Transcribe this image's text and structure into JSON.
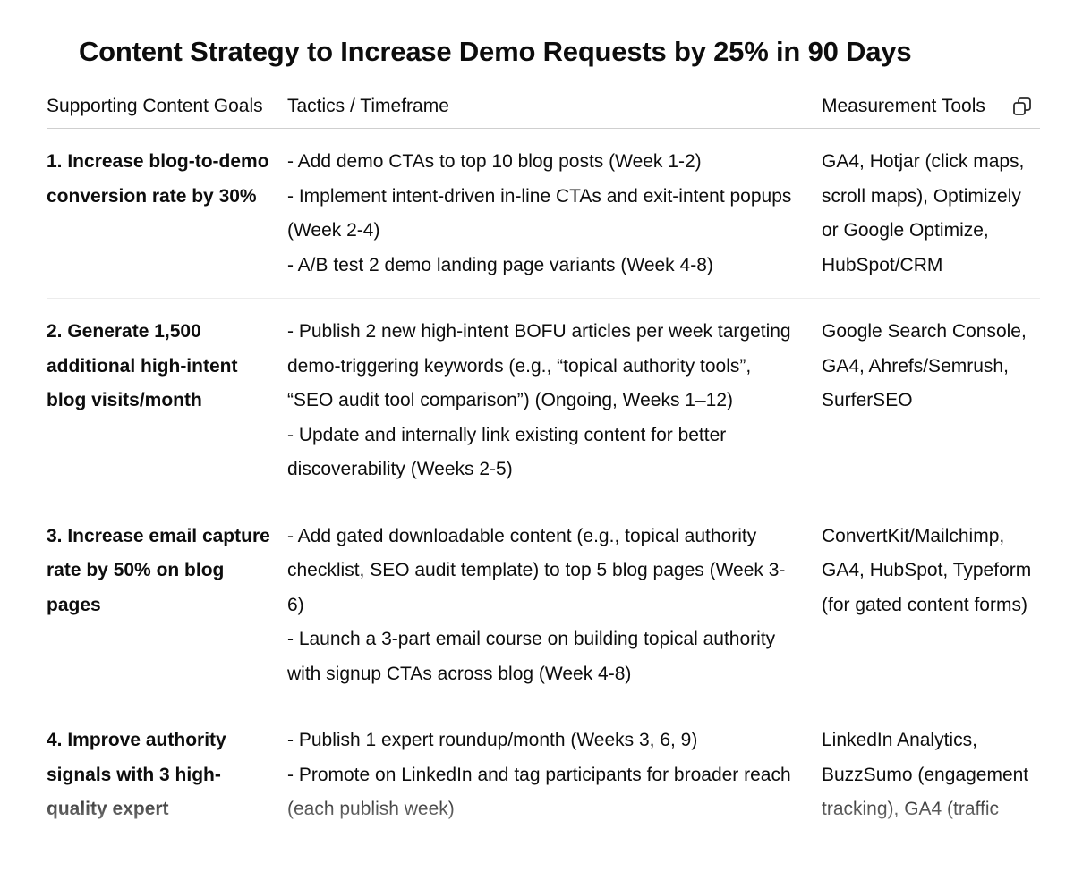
{
  "title": "Content Strategy to Increase Demo Requests by 25% in 90 Days",
  "table": {
    "headers": {
      "goals": "Supporting Content Goals",
      "tactics": "Tactics / Timeframe",
      "tools": "Measurement Tools"
    },
    "copy_icon": "copy-icon",
    "rows": [
      {
        "goal": "1. Increase blog-to-demo conversion rate by 30%",
        "tactics": [
          "- Add demo CTAs to top 10 blog posts (Week 1-2)",
          "- Implement intent-driven in-line CTAs and exit-intent popups (Week 2-4)",
          "- A/B test 2 demo landing page variants (Week 4-8)"
        ],
        "tools": "GA4, Hotjar (click maps, scroll maps), Optimizely or Google Optimize, HubSpot/CRM"
      },
      {
        "goal": "2. Generate 1,500 additional high-intent blog visits/month",
        "tactics": [
          "- Publish 2 new high-intent BOFU articles per week targeting demo-triggering keywords (e.g., “topical authority tools”, “SEO audit tool comparison”) (Ongoing, Weeks 1–12)",
          "- Update and internally link existing content for better discoverability (Weeks 2-5)"
        ],
        "tools": "Google Search Console, GA4, Ahrefs/Semrush, SurferSEO"
      },
      {
        "goal": "3. Increase email capture rate by 50% on blog pages",
        "tactics": [
          "- Add gated downloadable content (e.g., topical authority checklist, SEO audit template) to top 5 blog pages (Week 3-6)",
          "- Launch a 3-part email course on building topical authority with signup CTAs across blog (Week 4-8)"
        ],
        "tools": "ConvertKit/Mailchimp, GA4, HubSpot, Typeform (for gated content forms)"
      },
      {
        "goal": "4. Improve authority signals with 3 high-quality expert",
        "tactics": [
          "- Publish 1 expert roundup/month (Weeks 3, 6, 9)",
          "- Promote on LinkedIn and tag participants for broader reach (each publish week)"
        ],
        "tools": "LinkedIn Analytics, BuzzSumo (engagement tracking), GA4 (traffic"
      }
    ]
  }
}
